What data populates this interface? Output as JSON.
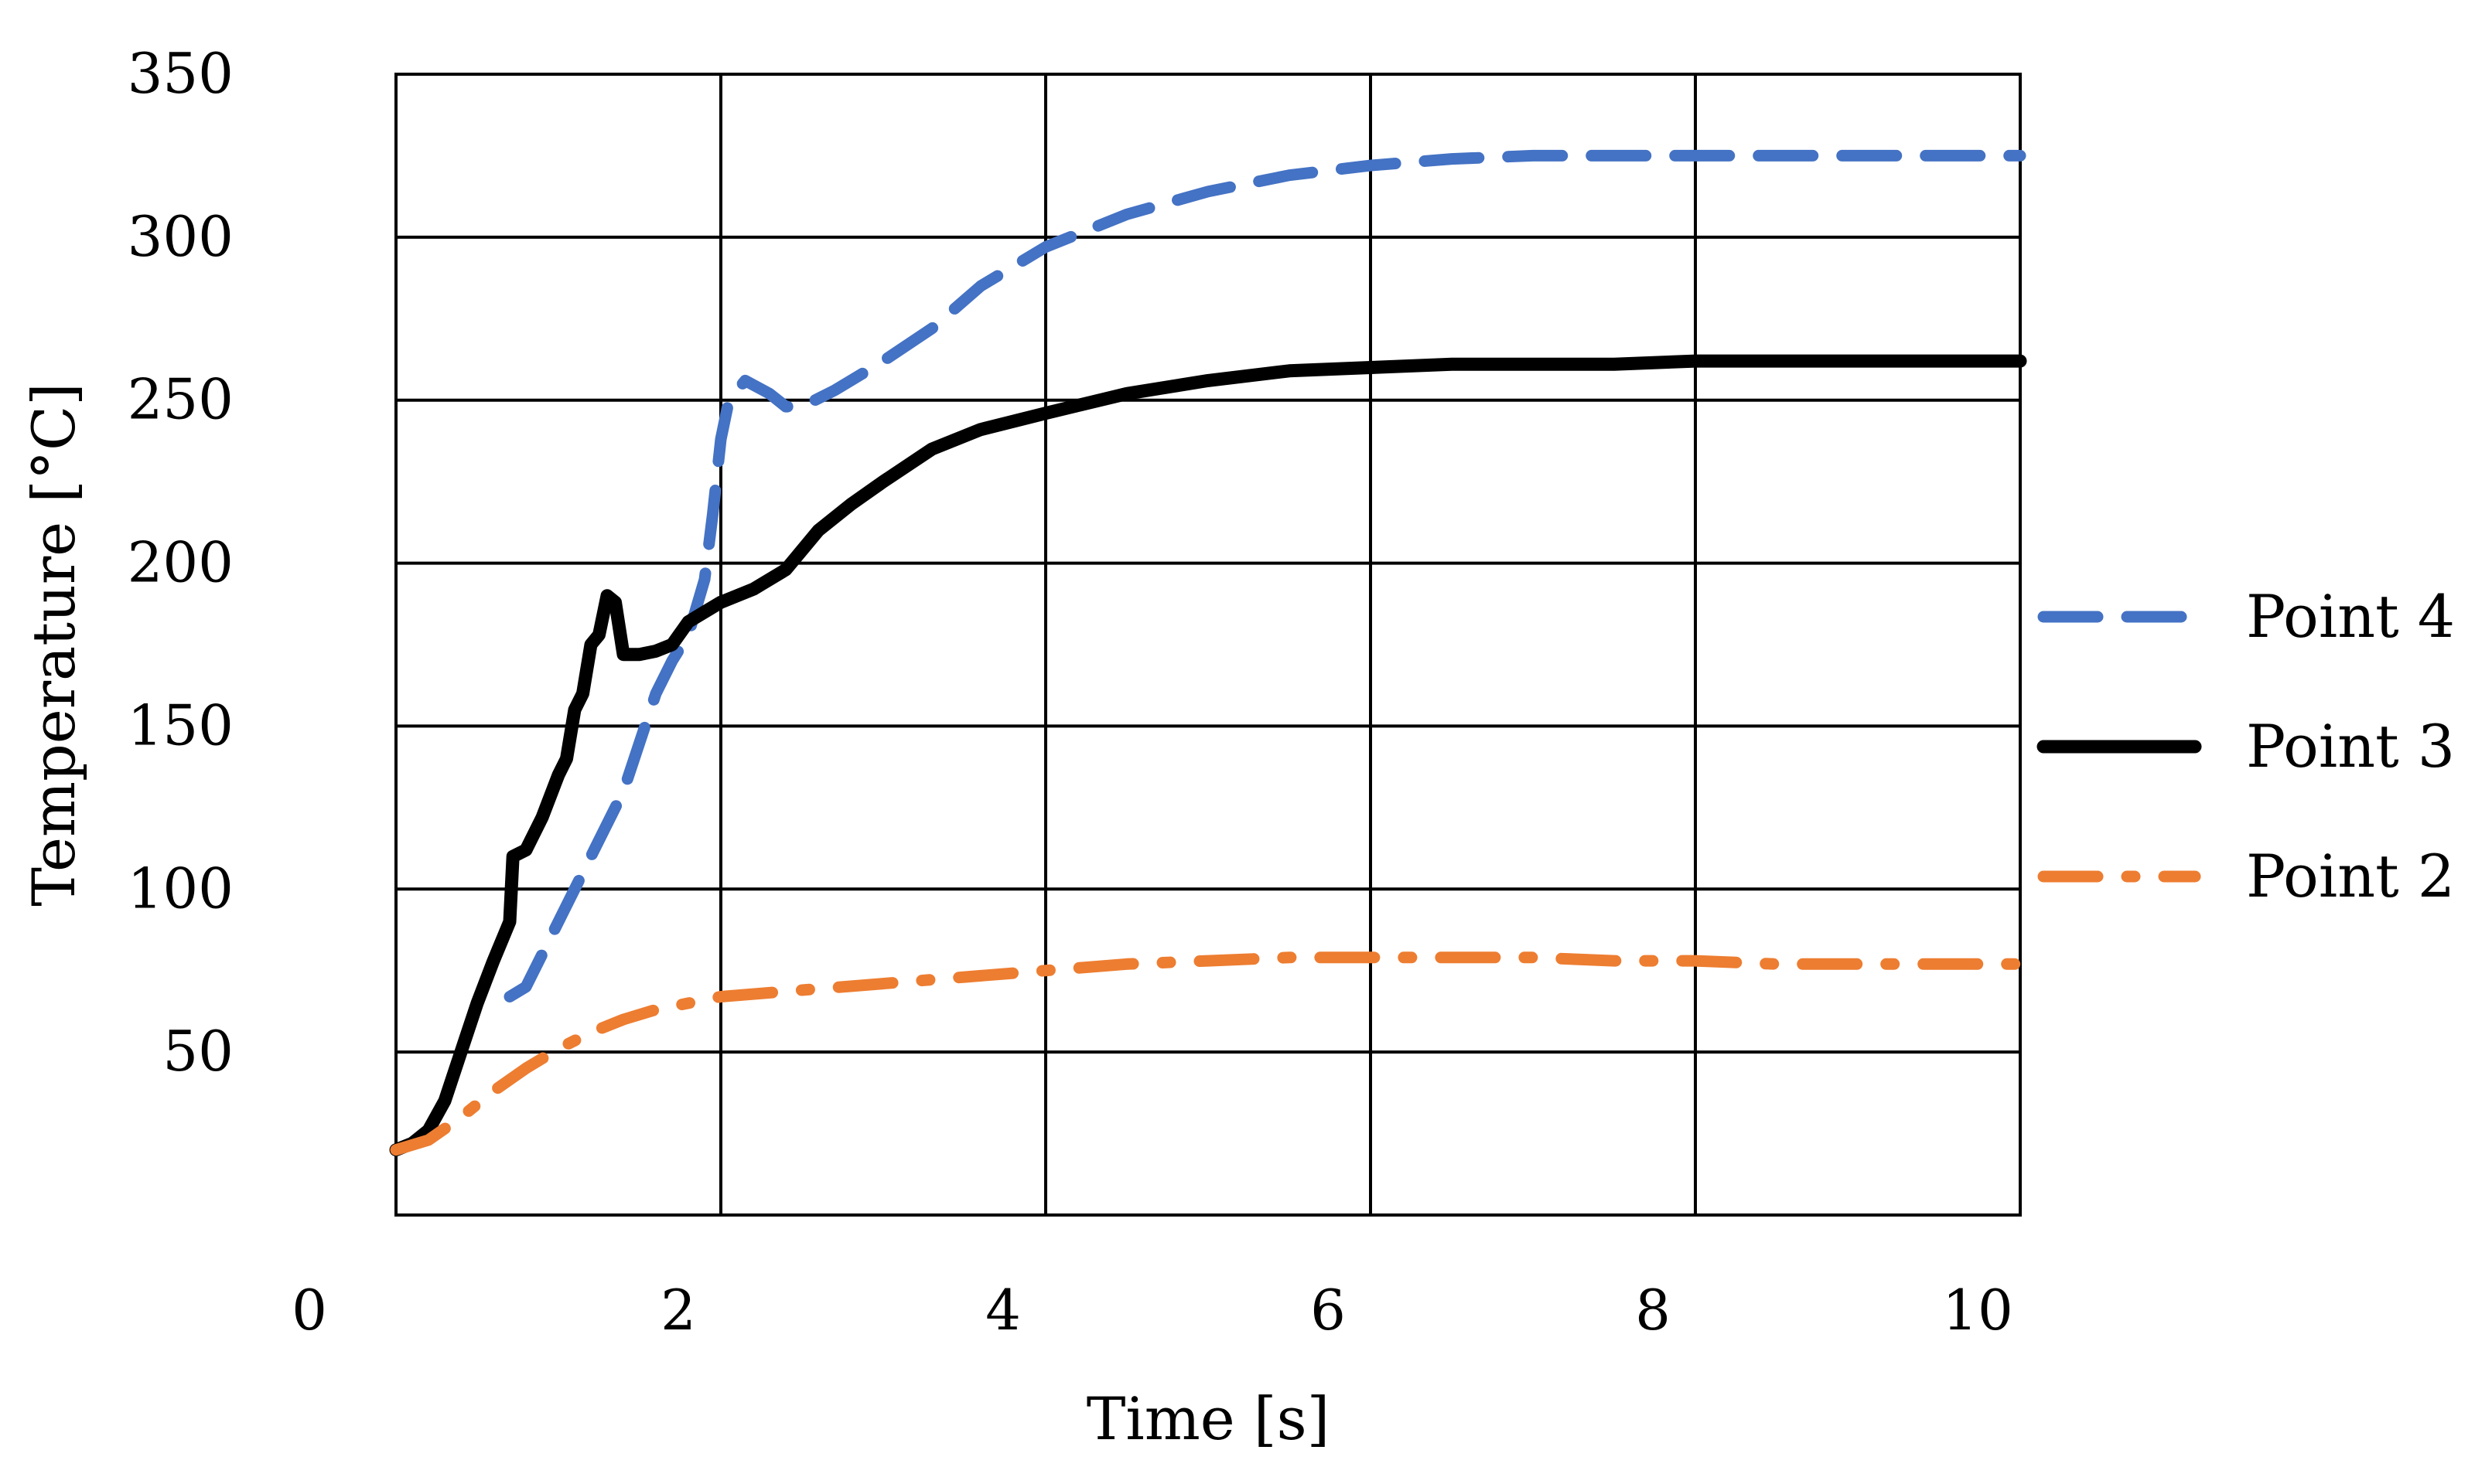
{
  "chart_data": {
    "type": "line",
    "title": "",
    "xlabel": "Time [s]",
    "ylabel": "Temperature [°C]",
    "xlim": [
      0,
      10
    ],
    "ylim": [
      0,
      350
    ],
    "grid": true,
    "legend_position": "right",
    "x_ticks": [
      {
        "value": 0,
        "label": "0"
      },
      {
        "value": 2,
        "label": "2"
      },
      {
        "value": 4,
        "label": "4"
      },
      {
        "value": 6,
        "label": "6"
      },
      {
        "value": 8,
        "label": "8"
      },
      {
        "value": 10,
        "label": "10"
      }
    ],
    "y_ticks": [
      {
        "value": 50,
        "label": "50"
      },
      {
        "value": 100,
        "label": "100"
      },
      {
        "value": 150,
        "label": "150"
      },
      {
        "value": 200,
        "label": "200"
      },
      {
        "value": 250,
        "label": "250"
      },
      {
        "value": 300,
        "label": "300"
      },
      {
        "value": 350,
        "label": "350"
      }
    ],
    "series": [
      {
        "name": "Point 4",
        "style": "dashed",
        "color": "#4472C4",
        "points": [
          [
            0.7,
            67
          ],
          [
            0.8,
            70
          ],
          [
            1.0,
            90
          ],
          [
            1.2,
            110
          ],
          [
            1.4,
            130
          ],
          [
            1.5,
            145
          ],
          [
            1.6,
            160
          ],
          [
            1.7,
            170
          ],
          [
            1.8,
            178
          ],
          [
            1.9,
            195
          ],
          [
            1.95,
            215
          ],
          [
            2.0,
            238
          ],
          [
            2.05,
            250
          ],
          [
            2.15,
            256
          ],
          [
            2.3,
            252
          ],
          [
            2.4,
            248
          ],
          [
            2.5,
            248
          ],
          [
            2.7,
            253
          ],
          [
            3.0,
            262
          ],
          [
            3.3,
            272
          ],
          [
            3.6,
            285
          ],
          [
            4.0,
            297
          ],
          [
            4.5,
            307
          ],
          [
            5.0,
            314
          ],
          [
            5.5,
            319
          ],
          [
            6.0,
            322
          ],
          [
            6.5,
            324
          ],
          [
            7.0,
            325
          ],
          [
            7.5,
            325
          ],
          [
            8.0,
            325
          ],
          [
            8.5,
            325
          ],
          [
            9.0,
            325
          ],
          [
            9.5,
            325
          ],
          [
            10.0,
            325
          ]
        ]
      },
      {
        "name": "Point 3",
        "style": "solid",
        "color": "#000000",
        "points": [
          [
            0.0,
            20
          ],
          [
            0.1,
            22
          ],
          [
            0.2,
            26
          ],
          [
            0.3,
            35
          ],
          [
            0.4,
            50
          ],
          [
            0.5,
            65
          ],
          [
            0.6,
            78
          ],
          [
            0.7,
            90
          ],
          [
            0.72,
            110
          ],
          [
            0.8,
            112
          ],
          [
            0.9,
            122
          ],
          [
            1.0,
            135
          ],
          [
            1.05,
            140
          ],
          [
            1.1,
            155
          ],
          [
            1.15,
            160
          ],
          [
            1.2,
            175
          ],
          [
            1.25,
            178
          ],
          [
            1.3,
            190
          ],
          [
            1.35,
            188
          ],
          [
            1.4,
            172
          ],
          [
            1.5,
            172
          ],
          [
            1.6,
            173
          ],
          [
            1.7,
            175
          ],
          [
            1.8,
            182
          ],
          [
            1.9,
            185
          ],
          [
            2.0,
            188
          ],
          [
            2.2,
            192
          ],
          [
            2.4,
            198
          ],
          [
            2.6,
            210
          ],
          [
            2.8,
            218
          ],
          [
            3.0,
            225
          ],
          [
            3.3,
            235
          ],
          [
            3.6,
            241
          ],
          [
            4.0,
            246
          ],
          [
            4.5,
            252
          ],
          [
            5.0,
            256
          ],
          [
            5.5,
            259
          ],
          [
            6.0,
            260
          ],
          [
            6.5,
            261
          ],
          [
            7.0,
            261
          ],
          [
            7.5,
            261
          ],
          [
            8.0,
            262
          ],
          [
            8.5,
            262
          ],
          [
            9.0,
            262
          ],
          [
            9.5,
            262
          ],
          [
            10.0,
            262
          ]
        ]
      },
      {
        "name": "Point 2",
        "style": "dashdot",
        "color": "#ED7D31",
        "points": [
          [
            0.0,
            20
          ],
          [
            0.2,
            23
          ],
          [
            0.4,
            30
          ],
          [
            0.6,
            38
          ],
          [
            0.8,
            45
          ],
          [
            1.0,
            51
          ],
          [
            1.2,
            56
          ],
          [
            1.4,
            60
          ],
          [
            1.6,
            63
          ],
          [
            1.8,
            65
          ],
          [
            2.0,
            67
          ],
          [
            2.5,
            69
          ],
          [
            3.0,
            71
          ],
          [
            3.5,
            73
          ],
          [
            4.0,
            75
          ],
          [
            4.5,
            77
          ],
          [
            5.0,
            78
          ],
          [
            5.5,
            79
          ],
          [
            6.0,
            79
          ],
          [
            6.5,
            79
          ],
          [
            7.0,
            79
          ],
          [
            7.5,
            78
          ],
          [
            8.0,
            78
          ],
          [
            8.5,
            77
          ],
          [
            9.0,
            77
          ],
          [
            9.5,
            77
          ],
          [
            10.0,
            77
          ]
        ]
      }
    ]
  }
}
